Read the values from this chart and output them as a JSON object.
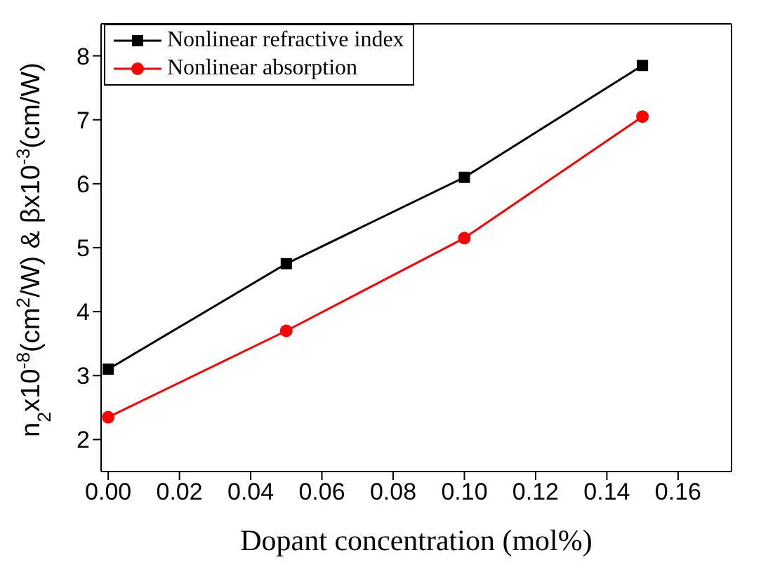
{
  "chart_data": {
    "type": "line",
    "xlabel": "Dopant concentration (mol%)",
    "ylabel": "n$_{2}$x10$^{-8}$(cm$^{2}$/W) & βx10$^{-3}$(cm/W)",
    "x": [
      0,
      0.05,
      0.1,
      0.15
    ],
    "series": [
      {
        "name": "Nonlinear refractive index",
        "color": "#000000",
        "marker": "square",
        "values": [
          3.1,
          4.75,
          6.1,
          7.85
        ]
      },
      {
        "name": "Nonlinear absorption",
        "color": "#ff0000",
        "marker": "circle",
        "values": [
          2.35,
          3.7,
          5.15,
          7.05
        ]
      }
    ],
    "xlim": [
      -0.002,
      0.175
    ],
    "xticks": [
      {
        "value": 0,
        "label": "0.00"
      },
      {
        "value": 0.02,
        "label": "0.02"
      },
      {
        "value": 0.04,
        "label": "0.04"
      },
      {
        "value": 0.06,
        "label": "0.06"
      },
      {
        "value": 0.08,
        "label": "0.08"
      },
      {
        "value": 0.1,
        "label": "0.10"
      },
      {
        "value": 0.12,
        "label": "0.12"
      },
      {
        "value": 0.14,
        "label": "0.14"
      },
      {
        "value": 0.16,
        "label": "0.16"
      }
    ],
    "ylim": [
      1.5,
      8.5
    ],
    "yticks": [
      2,
      3,
      4,
      5,
      6,
      7,
      8
    ],
    "grid": false,
    "legend": "top left",
    "line_style": "solid"
  }
}
